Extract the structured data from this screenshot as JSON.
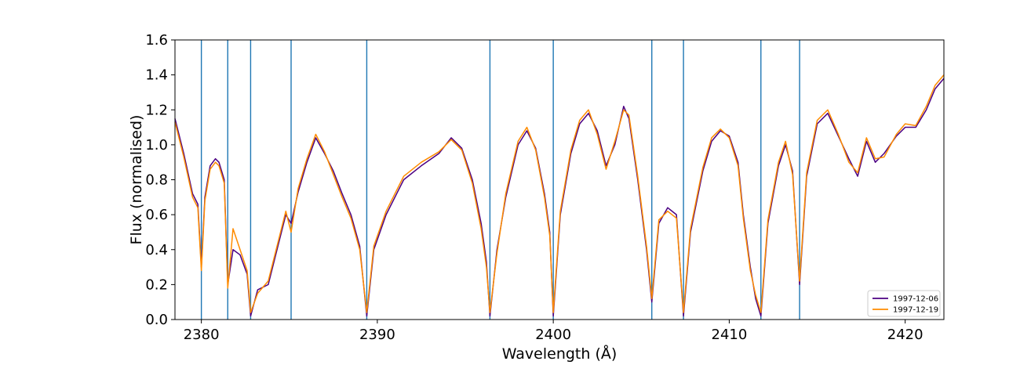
{
  "chart_data": {
    "type": "line",
    "title": "",
    "xlabel": "Wavelength (Å)",
    "ylabel": "Flux (normalised)",
    "xlim": [
      2378.5,
      2422.2
    ],
    "ylim": [
      0.0,
      1.6
    ],
    "xticks": [
      2380,
      2390,
      2400,
      2410,
      2420
    ],
    "yticks": [
      0.0,
      0.2,
      0.4,
      0.6,
      0.8,
      1.0,
      1.2,
      1.4,
      1.6
    ],
    "xtick_labels": [
      "2380",
      "2390",
      "2400",
      "2410",
      "2420"
    ],
    "ytick_labels": [
      "0.0",
      "0.2",
      "0.4",
      "0.6",
      "0.8",
      "1.0",
      "1.2",
      "1.4",
      "1.6"
    ],
    "grid": false,
    "legend_position": "lower-right",
    "vertical_lines": {
      "color": "#1f77b4",
      "x": [
        2380.0,
        2381.5,
        2382.8,
        2385.1,
        2389.4,
        2396.4,
        2400.0,
        2405.6,
        2407.4,
        2411.8,
        2414.0
      ]
    },
    "series": [
      {
        "name": "1997-12-06",
        "color": "#4b0082",
        "x": [
          2378.5,
          2379.0,
          2379.5,
          2379.8,
          2380.0,
          2380.2,
          2380.5,
          2380.8,
          2381.0,
          2381.3,
          2381.5,
          2381.8,
          2382.2,
          2382.6,
          2382.8,
          2383.2,
          2383.8,
          2384.3,
          2384.8,
          2385.1,
          2385.5,
          2386.0,
          2386.5,
          2387.0,
          2387.5,
          2388.0,
          2388.5,
          2389.0,
          2389.4,
          2389.8,
          2390.5,
          2391.5,
          2392.5,
          2393.5,
          2394.2,
          2394.8,
          2395.4,
          2395.9,
          2396.2,
          2396.4,
          2396.8,
          2397.3,
          2398.0,
          2398.5,
          2399.0,
          2399.5,
          2399.8,
          2400.0,
          2400.4,
          2401.0,
          2401.5,
          2402.0,
          2402.5,
          2403.0,
          2403.5,
          2404.0,
          2404.3,
          2404.8,
          2405.3,
          2405.6,
          2406.0,
          2406.5,
          2407.0,
          2407.4,
          2407.8,
          2408.5,
          2409.0,
          2409.5,
          2410.0,
          2410.5,
          2410.8,
          2411.2,
          2411.5,
          2411.8,
          2412.2,
          2412.8,
          2413.2,
          2413.6,
          2414.0,
          2414.4,
          2415.0,
          2415.6,
          2416.2,
          2416.8,
          2417.3,
          2417.8,
          2418.3,
          2418.8,
          2419.5,
          2420.0,
          2420.6,
          2421.2,
          2421.7,
          2422.2
        ],
        "values": [
          1.15,
          0.95,
          0.72,
          0.66,
          0.3,
          0.7,
          0.88,
          0.92,
          0.9,
          0.8,
          0.2,
          0.4,
          0.37,
          0.26,
          0.02,
          0.17,
          0.2,
          0.4,
          0.6,
          0.55,
          0.73,
          0.9,
          1.04,
          0.95,
          0.85,
          0.72,
          0.6,
          0.42,
          0.02,
          0.4,
          0.6,
          0.8,
          0.88,
          0.95,
          1.04,
          0.98,
          0.8,
          0.55,
          0.33,
          0.02,
          0.4,
          0.7,
          1.0,
          1.08,
          0.98,
          0.72,
          0.5,
          0.02,
          0.6,
          0.95,
          1.12,
          1.18,
          1.08,
          0.88,
          1.0,
          1.22,
          1.15,
          0.8,
          0.4,
          0.1,
          0.55,
          0.64,
          0.6,
          0.02,
          0.5,
          0.85,
          1.02,
          1.08,
          1.05,
          0.9,
          0.6,
          0.3,
          0.12,
          0.02,
          0.55,
          0.88,
          1.0,
          0.85,
          0.2,
          0.82,
          1.12,
          1.18,
          1.05,
          0.92,
          0.82,
          1.02,
          0.9,
          0.95,
          1.05,
          1.1,
          1.1,
          1.2,
          1.32,
          1.38
        ]
      },
      {
        "name": "1997-12-19",
        "color": "#ff8c00",
        "x": [
          2378.5,
          2379.0,
          2379.5,
          2379.8,
          2380.0,
          2380.2,
          2380.5,
          2380.8,
          2381.0,
          2381.3,
          2381.5,
          2381.8,
          2382.2,
          2382.6,
          2382.8,
          2383.2,
          2383.8,
          2384.3,
          2384.8,
          2385.1,
          2385.5,
          2386.0,
          2386.5,
          2387.0,
          2387.5,
          2388.0,
          2388.5,
          2389.0,
          2389.4,
          2389.8,
          2390.5,
          2391.5,
          2392.5,
          2393.5,
          2394.2,
          2394.8,
          2395.4,
          2395.9,
          2396.2,
          2396.4,
          2396.8,
          2397.3,
          2398.0,
          2398.5,
          2399.0,
          2399.5,
          2399.8,
          2400.0,
          2400.4,
          2401.0,
          2401.5,
          2402.0,
          2402.5,
          2403.0,
          2403.5,
          2404.0,
          2404.3,
          2404.8,
          2405.3,
          2405.6,
          2406.0,
          2406.5,
          2407.0,
          2407.4,
          2407.8,
          2408.5,
          2409.0,
          2409.5,
          2410.0,
          2410.5,
          2410.8,
          2411.2,
          2411.5,
          2411.8,
          2412.2,
          2412.8,
          2413.2,
          2413.6,
          2414.0,
          2414.4,
          2415.0,
          2415.6,
          2416.2,
          2416.8,
          2417.3,
          2417.8,
          2418.3,
          2418.8,
          2419.5,
          2420.0,
          2420.6,
          2421.2,
          2421.7,
          2422.2
        ],
        "values": [
          1.13,
          0.93,
          0.7,
          0.64,
          0.28,
          0.68,
          0.86,
          0.9,
          0.88,
          0.78,
          0.18,
          0.52,
          0.4,
          0.28,
          0.04,
          0.15,
          0.22,
          0.42,
          0.62,
          0.5,
          0.75,
          0.92,
          1.06,
          0.96,
          0.83,
          0.7,
          0.58,
          0.4,
          0.04,
          0.42,
          0.62,
          0.82,
          0.9,
          0.96,
          1.03,
          0.97,
          0.78,
          0.52,
          0.3,
          0.04,
          0.38,
          0.72,
          1.02,
          1.1,
          0.97,
          0.7,
          0.48,
          0.04,
          0.62,
          0.97,
          1.14,
          1.2,
          1.06,
          0.86,
          1.02,
          1.2,
          1.17,
          0.82,
          0.42,
          0.12,
          0.57,
          0.62,
          0.58,
          0.04,
          0.52,
          0.87,
          1.04,
          1.09,
          1.04,
          0.88,
          0.58,
          0.28,
          0.14,
          0.04,
          0.57,
          0.9,
          1.02,
          0.83,
          0.22,
          0.84,
          1.14,
          1.2,
          1.06,
          0.9,
          0.84,
          1.04,
          0.92,
          0.93,
          1.06,
          1.12,
          1.11,
          1.22,
          1.34,
          1.4
        ]
      }
    ]
  }
}
